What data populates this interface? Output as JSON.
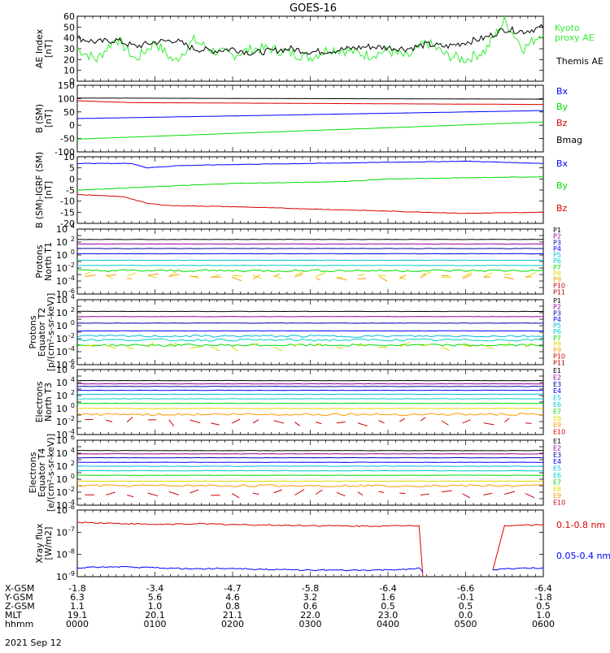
{
  "title": "GOES-16",
  "date": "2021 Sep 12",
  "colors": {
    "black": "#000000",
    "blue": "#0000ff",
    "green": "#00dd00",
    "red": "#dd0000",
    "ae_green": "#33ee33",
    "purple": "#990099",
    "navy": "#0000aa",
    "cyan": "#00bbdd",
    "aqua": "#00cccc",
    "yellow": "#dddd00",
    "orange": "#ff9900",
    "dkred": "#cc0000",
    "maroon": "#aa0000"
  },
  "x_axis": {
    "rows": [
      {
        "label": "X-GSM",
        "values": [
          "-1.8",
          "-3.4",
          "-4.7",
          "-5.8",
          "-6.4",
          "-6.6",
          "-6.4"
        ]
      },
      {
        "label": "Y-GSM",
        "values": [
          "6.3",
          "5.6",
          "4.6",
          "3.2",
          "1.6",
          "-0.1",
          "-1.8"
        ]
      },
      {
        "label": "Z-GSM",
        "values": [
          "1.1",
          "1.0",
          "0.8",
          "0.6",
          "0.5",
          "0.5",
          "0.5"
        ]
      },
      {
        "label": "MLT",
        "values": [
          "19.1",
          "20.1",
          "21.1",
          "22.0",
          "23.0",
          "0.0",
          "1.0"
        ]
      },
      {
        "label": "hhmm",
        "values": [
          "0000",
          "0100",
          "0200",
          "0300",
          "0400",
          "0500",
          "0600"
        ]
      }
    ],
    "range_hours": [
      0,
      6
    ]
  },
  "chart_data": [
    {
      "type": "line",
      "ylabel": "AE Index [nT]",
      "ylim": [
        0,
        60
      ],
      "yticks": [
        "0",
        "10",
        "20",
        "30",
        "40",
        "50",
        "60"
      ],
      "series": [
        {
          "name": "Kyoto proxy AE",
          "color": "#33ee33",
          "x": [
            0,
            0.25,
            0.5,
            0.75,
            1,
            1.25,
            1.5,
            1.75,
            2,
            2.25,
            2.5,
            2.75,
            3,
            3.25,
            3.5,
            3.75,
            4,
            4.25,
            4.5,
            4.75,
            5,
            5.25,
            5.5,
            5.75,
            6
          ],
          "values": [
            30,
            20,
            40,
            20,
            36,
            18,
            38,
            28,
            24,
            30,
            30,
            26,
            22,
            30,
            28,
            24,
            28,
            22,
            36,
            24,
            20,
            28,
            56,
            30,
            46
          ]
        },
        {
          "name": "Themis AE",
          "color": "#000000",
          "x": [
            0,
            0.25,
            0.5,
            0.75,
            1,
            1.25,
            1.5,
            1.75,
            2,
            2.25,
            2.5,
            2.75,
            3,
            3.25,
            3.5,
            3.75,
            4,
            4.25,
            4.5,
            4.75,
            5,
            5.25,
            5.5,
            5.75,
            6
          ],
          "values": [
            40,
            36,
            38,
            32,
            36,
            38,
            30,
            28,
            30,
            26,
            28,
            30,
            27,
            28,
            30,
            32,
            31,
            30,
            34,
            32,
            36,
            40,
            48,
            46,
            50
          ]
        }
      ]
    },
    {
      "type": "line",
      "ylabel": "B (SM) [nT]",
      "ylim": [
        -100,
        150
      ],
      "yticks": [
        "-100",
        "-50",
        "0",
        "50",
        "100",
        "150"
      ],
      "series": [
        {
          "name": "Bx",
          "color": "#0000ff",
          "x": [
            0,
            6
          ],
          "values": [
            25,
            55
          ]
        },
        {
          "name": "By",
          "color": "#00dd00",
          "x": [
            0,
            6
          ],
          "values": [
            -52,
            12
          ]
        },
        {
          "name": "Bz",
          "color": "#dd0000",
          "x": [
            0,
            0.7,
            6
          ],
          "values": [
            92,
            85,
            78
          ]
        },
        {
          "name": "Bmag",
          "color": "#000000",
          "x": [
            0,
            6
          ],
          "values": [
            102,
            98
          ]
        }
      ]
    },
    {
      "type": "line",
      "ylabel": "B (SM)-IGRF (SM) [nT]",
      "ylim": [
        -20,
        10
      ],
      "yticks": [
        "-20",
        "-15",
        "-10",
        "-5",
        "0",
        "5",
        "10"
      ],
      "series": [
        {
          "name": "Bx",
          "color": "#0000ff",
          "x": [
            0,
            0.7,
            0.9,
            1.3,
            2,
            3,
            4,
            5,
            6
          ],
          "values": [
            7,
            7,
            5,
            6,
            6.5,
            7,
            7.5,
            8,
            7
          ]
        },
        {
          "name": "By",
          "color": "#00dd00",
          "x": [
            0,
            1,
            2,
            3,
            3.5,
            4,
            5,
            6
          ],
          "values": [
            -5,
            -3.5,
            -2,
            -1.5,
            -1,
            0,
            0.5,
            1
          ]
        },
        {
          "name": "Bz",
          "color": "#dd0000",
          "x": [
            0,
            0.6,
            0.9,
            1.2,
            2,
            3,
            4,
            5,
            6
          ],
          "values": [
            -7,
            -8,
            -11,
            -12,
            -12.5,
            -13.5,
            -14.5,
            -15.5,
            -15
          ]
        }
      ]
    },
    {
      "type": "line",
      "ylabel": "Protons North T1",
      "ylim_log": [
        -6,
        4
      ],
      "yticks_exp": [
        -6,
        -4,
        -2,
        0,
        2,
        4
      ],
      "series": [
        {
          "name": "P1",
          "color": "#000000",
          "values": [
            2.4
          ]
        },
        {
          "name": "P2",
          "color": "#990099",
          "values": [
            1.7
          ]
        },
        {
          "name": "P3",
          "color": "#0000aa",
          "values": [
            1.0
          ]
        },
        {
          "name": "P4",
          "color": "#0000ff",
          "values": [
            0.2
          ]
        },
        {
          "name": "P5",
          "color": "#00bbdd",
          "values": [
            -0.8
          ]
        },
        {
          "name": "P6",
          "color": "#00cccc",
          "values": [
            -1.6
          ]
        },
        {
          "name": "P7",
          "color": "#00dd00",
          "values": [
            -2.4
          ]
        },
        {
          "name": "P8",
          "color": "#dddd00",
          "values": [
            -3.2
          ]
        },
        {
          "name": "P9",
          "color": "#ff9900",
          "values": [
            -3.4
          ]
        },
        {
          "name": "P10",
          "color": "#cc0000",
          "values": []
        },
        {
          "name": "P11",
          "color": "#aa0000",
          "values": []
        }
      ]
    },
    {
      "type": "line",
      "ylabel": "Protons Equator T2 [p/(cm²-s-sr-keV)]",
      "ylim_log": [
        -6,
        4
      ],
      "yticks_exp": [
        -6,
        -4,
        -2,
        0,
        2,
        4
      ],
      "series": [
        {
          "name": "P1",
          "color": "#000000",
          "values": [
            2.2
          ]
        },
        {
          "name": "P2",
          "color": "#990099",
          "values": [
            1.4
          ]
        },
        {
          "name": "P3",
          "color": "#0000aa",
          "values": [
            0.4
          ]
        },
        {
          "name": "P4",
          "color": "#0000ff",
          "values": [
            -0.8
          ]
        },
        {
          "name": "P5",
          "color": "#00bbdd",
          "values": [
            -1.6
          ]
        },
        {
          "name": "P6",
          "color": "#00cccc",
          "values": [
            -2.2
          ]
        },
        {
          "name": "P7",
          "color": "#00dd00",
          "values": [
            -3.0
          ]
        },
        {
          "name": "P8",
          "color": "#dddd00",
          "values": [
            -3.2
          ]
        },
        {
          "name": "P9",
          "color": "#ff9900",
          "values": []
        },
        {
          "name": "P10",
          "color": "#cc0000",
          "values": []
        },
        {
          "name": "P11",
          "color": "#aa0000",
          "values": []
        }
      ]
    },
    {
      "type": "line",
      "ylabel": "Electrons North T3",
      "ylim_log": [
        -4,
        6
      ],
      "yticks_exp": [
        -4,
        -2,
        0,
        2,
        4,
        6
      ],
      "series": [
        {
          "name": "E1",
          "color": "#000000",
          "values": [
            4.3
          ]
        },
        {
          "name": "E2",
          "color": "#990099",
          "values": [
            3.8
          ]
        },
        {
          "name": "E3",
          "color": "#0000aa",
          "values": [
            3.4
          ]
        },
        {
          "name": "E4",
          "color": "#0000ff",
          "values": [
            2.8
          ]
        },
        {
          "name": "E5",
          "color": "#00bbdd",
          "values": [
            2.2
          ]
        },
        {
          "name": "E6",
          "color": "#00cccc",
          "values": [
            1.5
          ]
        },
        {
          "name": "E7",
          "color": "#00dd00",
          "values": [
            0.8
          ]
        },
        {
          "name": "E8",
          "color": "#dddd00",
          "values": [
            0.0
          ]
        },
        {
          "name": "E9",
          "color": "#ff9900",
          "values": [
            -0.9
          ]
        },
        {
          "name": "E10",
          "color": "#cc0000",
          "values": [
            -2.0
          ]
        }
      ]
    },
    {
      "type": "line",
      "ylabel": "Electrons Equator T4 [e/(cm²-s-sr-keV)]",
      "ylim_log": [
        -4,
        6
      ],
      "yticks_exp": [
        -4,
        -2,
        0,
        2,
        4,
        6
      ],
      "series": [
        {
          "name": "E1",
          "color": "#000000",
          "values": [
            4.4
          ]
        },
        {
          "name": "E2",
          "color": "#990099",
          "values": [
            3.9
          ]
        },
        {
          "name": "E3",
          "color": "#0000aa",
          "values": [
            3.3
          ]
        },
        {
          "name": "E4",
          "color": "#0000ff",
          "values": [
            2.6
          ]
        },
        {
          "name": "E5",
          "color": "#00bbdd",
          "values": [
            2.0
          ]
        },
        {
          "name": "E6",
          "color": "#00cccc",
          "values": [
            1.3
          ]
        },
        {
          "name": "E7",
          "color": "#00dd00",
          "values": [
            0.6
          ]
        },
        {
          "name": "E8",
          "color": "#dddd00",
          "values": [
            -0.3
          ]
        },
        {
          "name": "E9",
          "color": "#ff9900",
          "values": [
            -1.0
          ]
        },
        {
          "name": "E10",
          "color": "#cc0000",
          "values": [
            -2.2
          ]
        }
      ]
    },
    {
      "type": "line",
      "ylabel": "Xray flux [W/m2]",
      "ylim_log": [
        -9,
        -6
      ],
      "yticks_exp": [
        -9,
        -8,
        -7,
        -6
      ],
      "series": [
        {
          "name": "0.1-0.8 nm",
          "color": "#dd0000",
          "x": [
            0,
            0.5,
            1,
            1.5,
            2,
            2.5,
            3,
            3.5,
            4,
            4.3,
            4.4,
            4.45,
            5.3,
            5.35,
            5.5,
            6
          ],
          "values": [
            -6.55,
            -6.6,
            -6.65,
            -6.62,
            -6.65,
            -6.68,
            -6.7,
            -6.72,
            -6.72,
            -6.7,
            -6.7,
            -9.0,
            null,
            -8.7,
            -6.7,
            -6.65
          ]
        },
        {
          "name": "0.05-0.4 nm",
          "color": "#0000ff",
          "x": [
            0,
            0.5,
            1,
            1.5,
            2,
            2.5,
            3,
            3.5,
            4,
            4.3,
            4.4,
            4.45,
            5.3,
            5.35,
            5.5,
            6
          ],
          "values": [
            -8.6,
            -8.55,
            -8.6,
            -8.65,
            -8.62,
            -8.68,
            -8.7,
            -8.72,
            -8.7,
            -8.65,
            -8.6,
            -8.8,
            null,
            -8.7,
            -8.65,
            -8.6
          ]
        }
      ]
    }
  ],
  "labels": {
    "ae": [
      "AE Index",
      "[nT]"
    ],
    "b": [
      "B (SM)",
      "[nT]"
    ],
    "bd": [
      "B (SM)-IGRF (SM)",
      "[nT]"
    ],
    "p1": [
      "Protons",
      "North T1"
    ],
    "p2": [
      "Protons",
      "Equator T2",
      "[p/(cm²-s-sr-keV)]"
    ],
    "e3": [
      "Electrons",
      "North T3"
    ],
    "e4": [
      "Electrons",
      "Equator T4",
      "[e/(cm²-s-sr-keV)]"
    ],
    "xr": [
      "Xray flux",
      "[W/m2]"
    ]
  },
  "legends": {
    "ae": [
      {
        "text": "Kyoto",
        "color": "#33ee33"
      },
      {
        "text": "proxy AE",
        "color": "#33ee33"
      },
      {
        "text": "Themis AE",
        "color": "#000000"
      }
    ],
    "b": [
      {
        "text": "Bx",
        "color": "#0000ff"
      },
      {
        "text": "By",
        "color": "#00dd00"
      },
      {
        "text": "Bz",
        "color": "#dd0000"
      },
      {
        "text": "Bmag",
        "color": "#000000"
      }
    ],
    "bd": [
      {
        "text": "Bx",
        "color": "#0000ff"
      },
      {
        "text": "By",
        "color": "#00dd00"
      },
      {
        "text": "Bz",
        "color": "#dd0000"
      }
    ],
    "xr": [
      {
        "text": "0.1-0.8 nm",
        "color": "#dd0000"
      },
      {
        "text": "0.05-0.4 nm",
        "color": "#0000ff"
      }
    ]
  }
}
